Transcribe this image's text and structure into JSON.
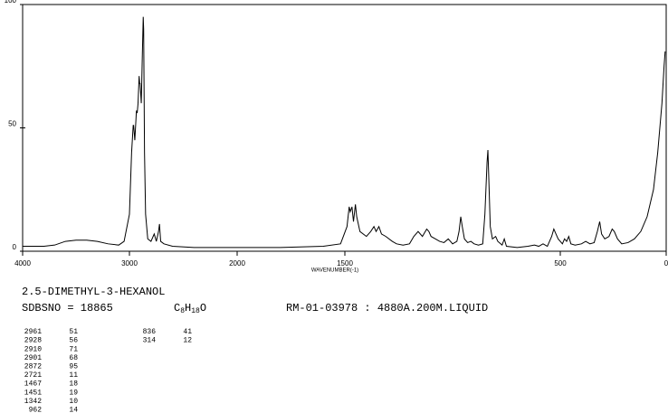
{
  "chart_data": {
    "type": "line",
    "xlabel": "WAVENUMBER(-1)",
    "xlim": [
      4000,
      0
    ],
    "ylim": [
      0,
      100
    ],
    "xticks": [
      4000,
      3000,
      2000,
      1500,
      500,
      0
    ],
    "yticks": [
      0,
      50,
      100
    ],
    "color": "#000000",
    "x": [
      4000,
      3800,
      3700,
      3600,
      3500,
      3400,
      3300,
      3200,
      3100,
      3050,
      3000,
      2980,
      2965,
      2961,
      2950,
      2935,
      2928,
      2920,
      2910,
      2905,
      2901,
      2890,
      2880,
      2872,
      2868,
      2860,
      2850,
      2830,
      2800,
      2770,
      2750,
      2730,
      2721,
      2710,
      2680,
      2600,
      2400,
      2200,
      2000,
      1800,
      1600,
      1520,
      1490,
      1480,
      1475,
      1467,
      1460,
      1451,
      1445,
      1430,
      1400,
      1380,
      1365,
      1355,
      1342,
      1330,
      1310,
      1280,
      1260,
      1230,
      1200,
      1180,
      1160,
      1140,
      1120,
      1110,
      1100,
      1080,
      1060,
      1040,
      1020,
      1000,
      980,
      970,
      962,
      955,
      945,
      930,
      915,
      900,
      880,
      860,
      850,
      840,
      836,
      832,
      825,
      815,
      800,
      790,
      770,
      760,
      750,
      700,
      650,
      620,
      600,
      580,
      560,
      540,
      530,
      520,
      510,
      490,
      480,
      470,
      460,
      450,
      430,
      400,
      380,
      360,
      340,
      325,
      314,
      305,
      290,
      270,
      255,
      245,
      230,
      210,
      180,
      150,
      120,
      90,
      60,
      40,
      20,
      10,
      5
    ],
    "values": [
      2,
      2,
      2.5,
      4,
      4.5,
      4.5,
      4,
      3,
      2.5,
      4,
      15,
      40,
      51,
      51,
      45,
      57,
      56,
      60,
      71,
      68,
      68,
      60,
      80,
      95,
      90,
      40,
      15,
      5,
      4,
      7,
      4,
      8,
      11,
      4,
      3,
      2,
      1.5,
      1.5,
      1.5,
      1.5,
      2,
      3,
      10,
      18,
      16,
      18,
      12,
      19,
      14,
      8,
      6,
      8,
      10,
      8,
      10,
      7,
      6,
      4,
      3,
      2.5,
      3,
      6,
      8,
      6,
      9,
      8,
      6,
      5,
      4,
      3.5,
      5,
      3,
      4,
      8,
      14,
      10,
      5,
      3.5,
      4,
      3,
      2.5,
      3,
      15,
      36,
      41,
      30,
      10,
      5,
      6,
      4,
      2.5,
      5,
      2,
      1.5,
      2,
      2.5,
      2,
      3,
      2,
      6,
      9,
      7,
      5,
      3,
      5,
      4,
      6,
      3,
      2.5,
      3,
      4,
      3,
      3.5,
      8,
      12,
      7,
      5,
      6,
      9,
      8,
      5,
      3,
      3.5,
      5,
      8,
      14,
      25,
      40,
      60,
      75,
      81
    ]
  },
  "compound": "2.5-DIMETHYL-3-HEXANOL",
  "sdbs_no": "SDBSNO = 18865",
  "formula": [
    "C",
    "8",
    "H",
    "18",
    "O"
  ],
  "sample": "RM-01-03978 : 4880A.200M.LIQUID",
  "peak_table": {
    "rows": [
      [
        2961,
        51
      ],
      [
        2928,
        56
      ],
      [
        2910,
        71
      ],
      [
        2901,
        68
      ],
      [
        2872,
        95
      ],
      [
        2721,
        11
      ],
      [
        1467,
        18
      ],
      [
        1451,
        19
      ],
      [
        1342,
        10
      ],
      [
        962,
        14
      ],
      [
        836,
        41
      ],
      [
        314,
        12
      ]
    ]
  }
}
